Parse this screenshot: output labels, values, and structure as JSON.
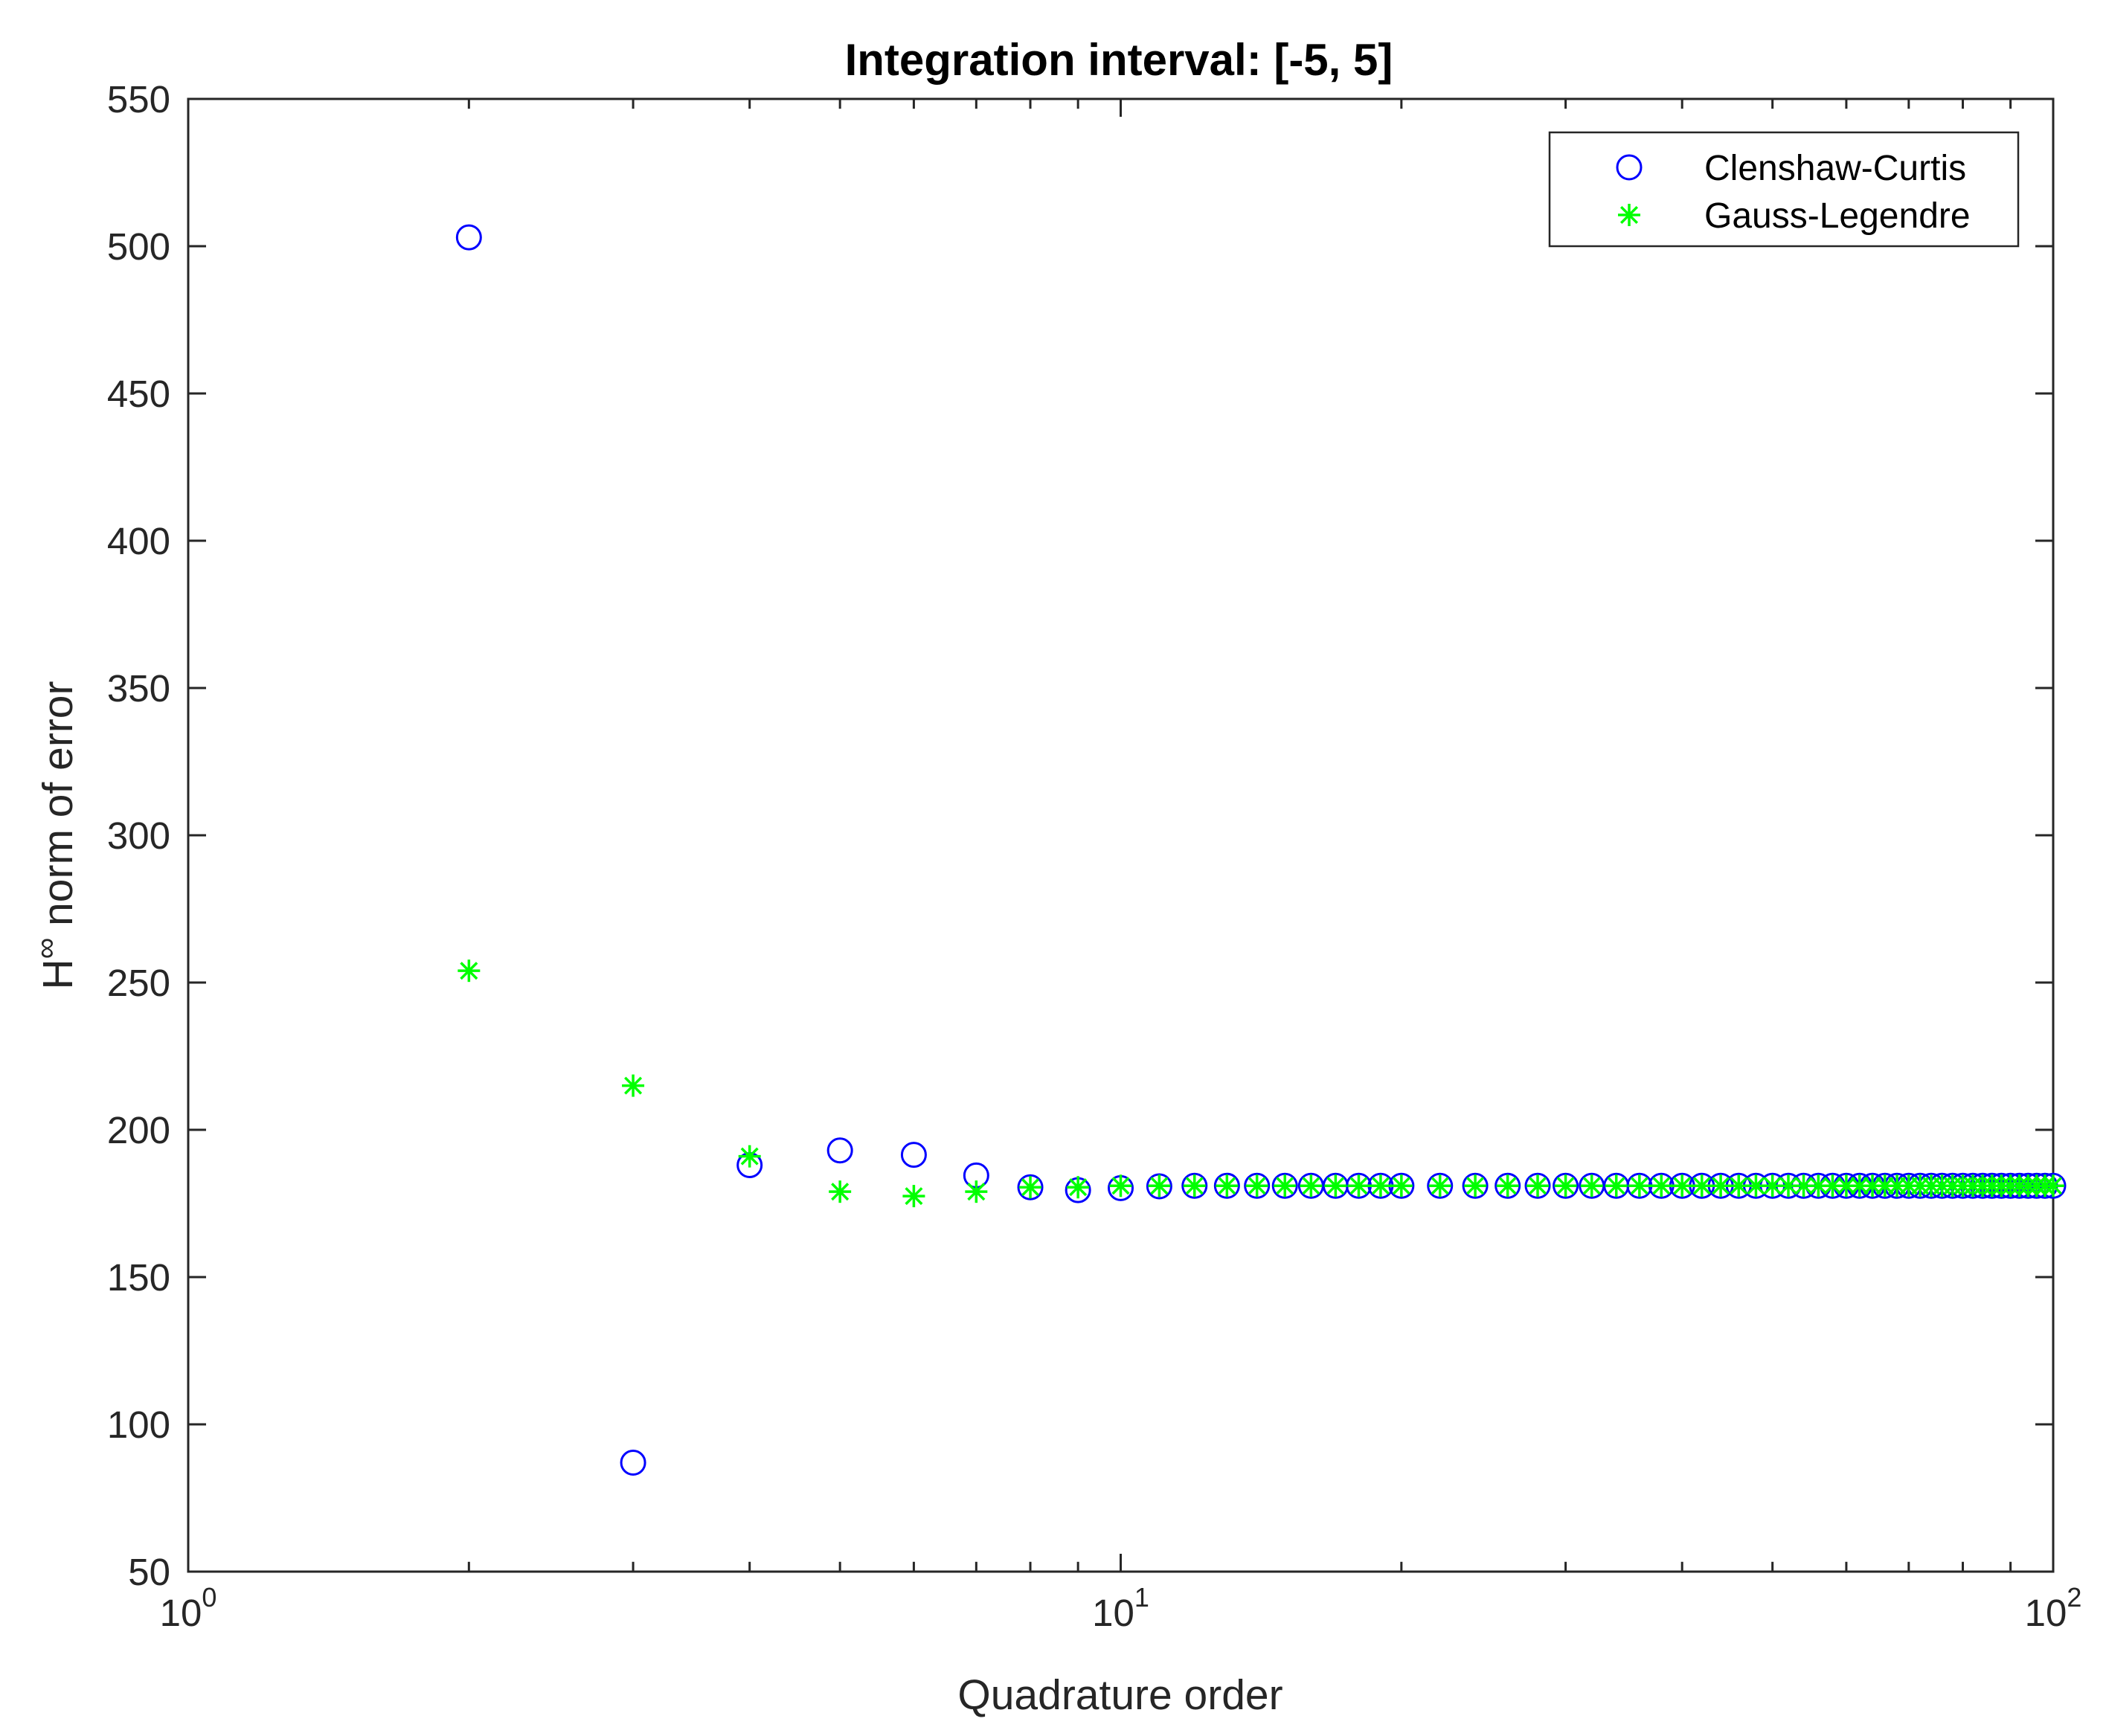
{
  "chart_data": {
    "type": "scatter",
    "title": "Integration interval: [-5, 5]",
    "xlabel": "Quadrature order",
    "ylabel": {
      "base": "H",
      "superscript": "∞",
      "rest": " norm of error"
    },
    "x_scale": "log",
    "xlim": [
      1,
      100
    ],
    "ylim": [
      50,
      550
    ],
    "x_ticks": [
      {
        "value": 1,
        "base": "10",
        "exponent": "0"
      },
      {
        "value": 10,
        "base": "10",
        "exponent": "1"
      },
      {
        "value": 100,
        "base": "10",
        "exponent": "2"
      }
    ],
    "y_ticks": [
      50,
      100,
      150,
      200,
      250,
      300,
      350,
      400,
      450,
      500,
      550
    ],
    "grid": false,
    "legend_position": "top-right",
    "series": [
      {
        "name": "Clenshaw-Curtis",
        "marker": "circle",
        "color": "#0000ff",
        "points": [
          [
            2,
            503
          ],
          [
            3,
            87
          ],
          [
            4,
            188
          ],
          [
            5,
            193
          ],
          [
            6,
            191.5
          ],
          [
            7,
            184.5
          ],
          [
            8,
            180.5
          ],
          [
            9,
            179.5
          ],
          [
            10,
            180.2
          ],
          [
            11,
            180.8
          ],
          [
            12,
            181
          ],
          [
            13,
            181
          ],
          [
            14,
            181
          ],
          [
            15,
            181
          ],
          [
            16,
            181
          ],
          [
            17,
            181
          ],
          [
            18,
            181
          ],
          [
            19,
            181
          ],
          [
            20,
            181
          ],
          [
            22,
            181
          ],
          [
            24,
            181
          ],
          [
            26,
            181
          ],
          [
            28,
            181
          ],
          [
            30,
            181
          ],
          [
            32,
            181
          ],
          [
            34,
            181
          ],
          [
            36,
            181
          ],
          [
            38,
            181
          ],
          [
            40,
            181
          ],
          [
            42,
            181
          ],
          [
            44,
            181
          ],
          [
            46,
            181
          ],
          [
            48,
            181
          ],
          [
            50,
            181
          ],
          [
            52,
            181
          ],
          [
            54,
            181
          ],
          [
            56,
            181
          ],
          [
            58,
            181
          ],
          [
            60,
            181
          ],
          [
            62,
            181
          ],
          [
            64,
            181
          ],
          [
            66,
            181
          ],
          [
            68,
            181
          ],
          [
            70,
            181
          ],
          [
            72,
            181
          ],
          [
            74,
            181
          ],
          [
            76,
            181
          ],
          [
            78,
            181
          ],
          [
            80,
            181
          ],
          [
            82,
            181
          ],
          [
            84,
            181
          ],
          [
            86,
            181
          ],
          [
            88,
            181
          ],
          [
            90,
            181
          ],
          [
            92,
            181
          ],
          [
            94,
            181
          ],
          [
            96,
            181
          ],
          [
            98,
            181
          ],
          [
            100,
            181
          ]
        ]
      },
      {
        "name": "Gauss-Legendre",
        "marker": "asterisk",
        "color": "#00ff00",
        "points": [
          [
            2,
            254
          ],
          [
            3,
            215
          ],
          [
            4,
            191
          ],
          [
            5,
            179
          ],
          [
            6,
            177.5
          ],
          [
            7,
            179
          ],
          [
            8,
            180.5
          ],
          [
            9,
            180.5
          ],
          [
            10,
            181
          ],
          [
            11,
            181
          ],
          [
            12,
            181
          ],
          [
            13,
            181
          ],
          [
            14,
            181
          ],
          [
            15,
            181
          ],
          [
            16,
            181
          ],
          [
            17,
            181
          ],
          [
            18,
            181
          ],
          [
            19,
            181
          ],
          [
            20,
            181
          ],
          [
            22,
            181
          ],
          [
            24,
            181
          ],
          [
            26,
            181
          ],
          [
            28,
            181
          ],
          [
            30,
            181
          ],
          [
            32,
            181
          ],
          [
            34,
            181
          ],
          [
            36,
            181
          ],
          [
            38,
            181
          ],
          [
            40,
            181
          ],
          [
            42,
            181
          ],
          [
            44,
            181
          ],
          [
            46,
            181
          ],
          [
            48,
            181
          ],
          [
            50,
            181
          ],
          [
            52,
            181
          ],
          [
            54,
            181
          ],
          [
            56,
            181
          ],
          [
            58,
            181
          ],
          [
            60,
            181
          ],
          [
            62,
            181
          ],
          [
            64,
            181
          ],
          [
            66,
            181
          ],
          [
            68,
            181
          ],
          [
            70,
            181
          ],
          [
            72,
            181
          ],
          [
            74,
            181
          ],
          [
            76,
            181
          ],
          [
            78,
            181
          ],
          [
            80,
            181
          ],
          [
            82,
            181
          ],
          [
            84,
            181
          ],
          [
            86,
            181
          ],
          [
            88,
            181
          ],
          [
            90,
            181
          ],
          [
            92,
            181
          ],
          [
            94,
            181
          ],
          [
            96,
            181
          ],
          [
            98,
            181
          ],
          [
            100,
            181
          ]
        ]
      }
    ]
  }
}
